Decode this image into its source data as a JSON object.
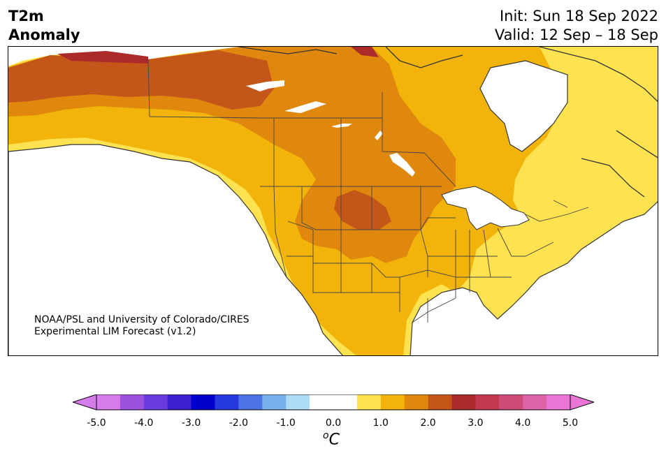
{
  "header": {
    "title_line1": "T2m",
    "title_line2": "Anomaly",
    "init_text": "Init: Sun 18 Sep 2022",
    "valid_text": "Valid: 12 Sep – 18 Sep"
  },
  "credit": {
    "line1": "NOAA/PSL and University of Colorado/CIRES",
    "line2": "Experimental LIM Forecast (v1.2)"
  },
  "colorbar": {
    "unit_base": "C",
    "unit_sup": "o",
    "tick_labels": [
      "-5.0",
      "-4.0",
      "-3.0",
      "-2.0",
      "-1.0",
      "0.0",
      "1.0",
      "2.0",
      "3.0",
      "4.0",
      "5.0"
    ],
    "bin_colors": [
      "#d57bec",
      "#9c52df",
      "#6a3cde",
      "#3a20d0",
      "#0000cd",
      "#2639dc",
      "#4d72e6",
      "#79b1ee",
      "#aedcf6",
      "#ffffff",
      "#ffffff",
      "#fee24f",
      "#f2b40a",
      "#e0870e",
      "#c5561a",
      "#ab2a2a",
      "#c13a52",
      "#cc4b78",
      "#de64aa",
      "#e975d7"
    ],
    "min_extend_color": "#d57bec",
    "max_extend_color": "#e975d7"
  },
  "map": {
    "land_outline_color": "#333333",
    "lake_color": "#ffffff"
  }
}
